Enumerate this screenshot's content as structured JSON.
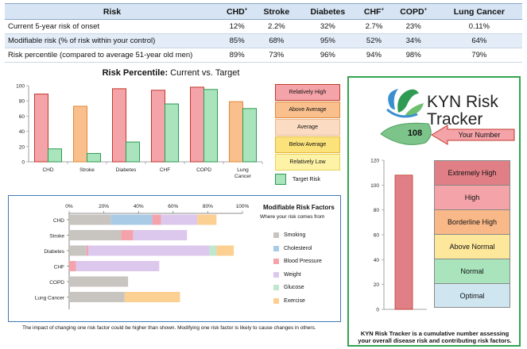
{
  "table": {
    "row_header": "Risk",
    "columns": [
      {
        "name": "CHD",
        "sup": "+"
      },
      {
        "name": "Stroke",
        "sup": ""
      },
      {
        "name": "Diabetes",
        "sup": ""
      },
      {
        "name": "CHF",
        "sup": "+"
      },
      {
        "name": "COPD",
        "sup": "+"
      },
      {
        "name": "Lung Cancer",
        "sup": ""
      }
    ],
    "rows": [
      {
        "label": "Current 5-year risk of onset",
        "values": [
          "12%",
          "2.2%",
          "32%",
          "2.7%",
          "23%",
          "0.11%"
        ]
      },
      {
        "label": "Modifiable risk (% of risk within your control)",
        "values": [
          "85%",
          "68%",
          "95%",
          "52%",
          "34%",
          "64%"
        ]
      },
      {
        "label": "Risk percentile (compared to average 51-year old men)",
        "values": [
          "89%",
          "73%",
          "96%",
          "94%",
          "98%",
          "79%"
        ]
      }
    ]
  },
  "percentile_chart": {
    "title_bold": "Risk Percentile:",
    "title_rest": " Current vs. Target",
    "legend_levels": [
      {
        "label": "Relatively High",
        "color": "#f4a3a8",
        "border": "#c0392b"
      },
      {
        "label": "Above Average",
        "color": "#f9c08d",
        "border": "#e08a3c"
      },
      {
        "label": "Average",
        "color": "#fbdcc2",
        "border": "#e7b88f"
      },
      {
        "label": "Below Average",
        "color": "#fbe27a",
        "border": "#e4b63b"
      },
      {
        "label": "Relatively Low",
        "color": "#fdf2a6",
        "border": "#e9d35a"
      }
    ],
    "target_label": "Target Risk"
  },
  "chart_data": [
    {
      "type": "bar",
      "title": "Risk Percentile: Current vs. Target",
      "categories": [
        "CHD",
        "Stroke",
        "Diabetes",
        "CHF",
        "COPD",
        "Lung Cancer"
      ],
      "series": [
        {
          "name": "Current",
          "values": [
            89,
            73,
            96,
            94,
            98,
            79
          ],
          "colors": [
            "#f4a3a8",
            "#f9c08d",
            "#f4a3a8",
            "#f4a3a8",
            "#f4a3a8",
            "#f9c08d"
          ],
          "borders": [
            "#c0392b",
            "#e08a3c",
            "#c0392b",
            "#c0392b",
            "#c0392b",
            "#e08a3c"
          ]
        },
        {
          "name": "Target Risk",
          "values": [
            17,
            11,
            26,
            76,
            95,
            70
          ],
          "color": "#a9e4bd",
          "border": "#2e9a52"
        }
      ],
      "yticks": [
        0,
        20,
        40,
        60,
        80,
        100
      ],
      "ylim": [
        0,
        100
      ]
    },
    {
      "type": "bar",
      "orientation": "horizontal-stacked",
      "title": "Modifiable Risk Factors",
      "subtitle": "Where your risk comes from",
      "categories": [
        "CHD",
        "Stroke",
        "Diabetes",
        "CHF",
        "COPD",
        "Lung Cancer"
      ],
      "series": [
        {
          "name": "Smoking",
          "color": "#c8c4bf",
          "values": [
            24,
            30,
            10,
            0,
            34,
            32
          ]
        },
        {
          "name": "Cholesterol",
          "color": "#a9cbe6",
          "values": [
            24,
            0,
            0,
            0,
            0,
            0
          ]
        },
        {
          "name": "Blood Pressure",
          "color": "#f4a3ad",
          "values": [
            5,
            7,
            1,
            4,
            0,
            0
          ]
        },
        {
          "name": "Weight",
          "color": "#dcc8ec",
          "values": [
            21,
            31,
            70,
            48,
            0,
            0
          ]
        },
        {
          "name": "Glucose",
          "color": "#bfe8cf",
          "values": [
            0,
            0,
            4,
            0,
            0,
            0
          ]
        },
        {
          "name": "Exercise",
          "color": "#fccf92",
          "values": [
            11,
            0,
            10,
            0,
            0,
            32
          ]
        }
      ],
      "xticks": [
        "0%",
        "20%",
        "40%",
        "60%",
        "80%",
        "100%"
      ],
      "xlim": [
        0,
        100
      ]
    },
    {
      "type": "bar",
      "title": "KYN Risk Tracker",
      "categories": [
        ""
      ],
      "values": [
        108
      ],
      "yticks": [
        0,
        20,
        40,
        60,
        80,
        100,
        120
      ],
      "ylim": [
        0,
        120
      ],
      "color": "#e07f86"
    }
  ],
  "modifiable": {
    "title": "Modifiable Risk Factors",
    "subtitle": "Where your risk comes from",
    "footnote": "The impact of changing one risk factor could be higher than shown. Modifying one risk factor is likely to cause changes in others."
  },
  "kyn": {
    "title_line1": "KYN Risk",
    "title_line2": "Tracker",
    "number": "108",
    "your_number": "Your Number",
    "levels": [
      {
        "label": "Extremely High",
        "color": "#e07f86"
      },
      {
        "label": "High",
        "color": "#f4a3a8"
      },
      {
        "label": "Borderline High",
        "color": "#f9b888"
      },
      {
        "label": "Above Normal",
        "color": "#fde79b"
      },
      {
        "label": "Normal",
        "color": "#a9e4bd"
      },
      {
        "label": "Optimal",
        "color": "#cfe6f1"
      }
    ],
    "caption": "KYN Risk Tracker is a cumulative number assessing your overall disease risk and contributing risk factors."
  }
}
